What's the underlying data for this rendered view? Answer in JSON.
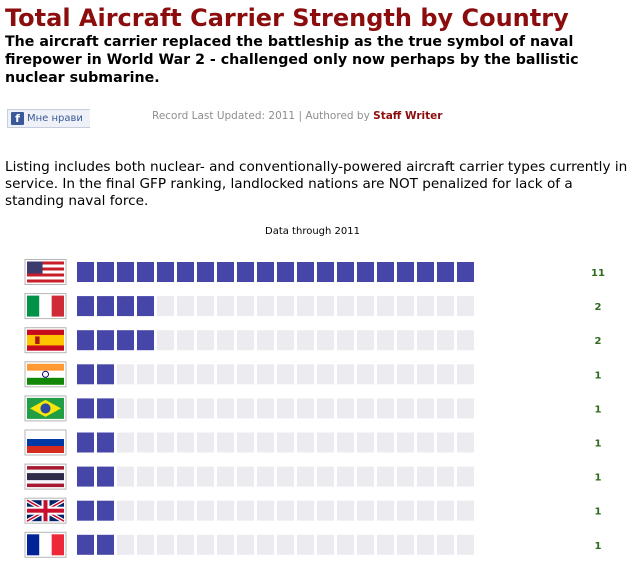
{
  "header": {
    "title": "Total Aircraft Carrier Strength by Country",
    "subtitle": "The aircraft carrier replaced the battleship as the true symbol of naval firepower in World War 2 - challenged only now perhaps by the ballistic nuclear submarine."
  },
  "social": {
    "like_label": "Мне нрави"
  },
  "meta": {
    "record_prefix": "Record Last Updated: 2011 | Authored by",
    "author": "Staff Writer"
  },
  "intro": "Listing includes both nuclear- and conventionally-powered aircraft carrier types currently in service. In the final GFP ranking, landlocked nations are NOT penalized for lack of a standing naval force.",
  "colors": {
    "title": "#8b0d0d",
    "filled_segment": "#4646a8",
    "empty_segment": "#ececf0",
    "value_text": "#2e6b1a"
  },
  "chart_data": {
    "type": "bar",
    "orientation": "horizontal",
    "title": "Data through 2011",
    "total_segments": 20,
    "categories": [
      "United States",
      "Italy",
      "Spain",
      "India",
      "Brazil",
      "Russia",
      "Thailand",
      "United Kingdom",
      "France"
    ],
    "flag_icons": [
      "flag-usa-icon",
      "flag-italy-icon",
      "flag-spain-icon",
      "flag-india-icon",
      "flag-brazil-icon",
      "flag-russia-icon",
      "flag-thailand-icon",
      "flag-uk-icon",
      "flag-france-icon"
    ],
    "values": [
      11,
      2,
      2,
      1,
      1,
      1,
      1,
      1,
      1
    ],
    "filled_segments": [
      20,
      4,
      4,
      2,
      2,
      2,
      2,
      2,
      2
    ],
    "grid": false,
    "legend": "none"
  }
}
